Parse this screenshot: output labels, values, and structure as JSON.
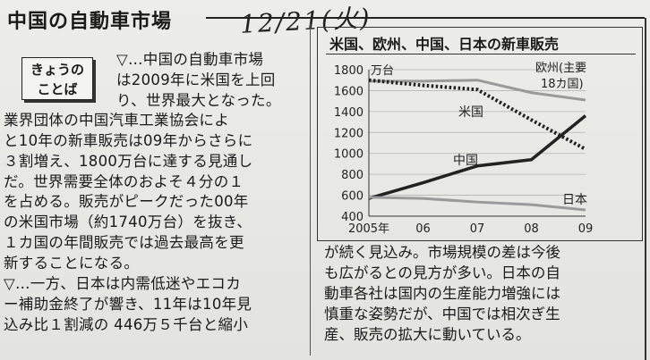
{
  "header": {
    "title": "中国の自動車市場",
    "handwritten_date": "12/21(火)"
  },
  "badge": {
    "line1": "きょうの",
    "line2": "ことば"
  },
  "article_left": {
    "lines": [
      "▽…中国の自動車市場",
      "は2009年に米国を上回",
      "り、世界最大となった。",
      "業界団体の中国汽車工業協会によ",
      "と10年の新車販売は09年からさらに",
      "３割増え、1800万台に達する見通し",
      "だ。世界需要全体のおよそ４分の１",
      "を占める。販売がピークだった00年",
      "の米国市場（約1740万台）を抜き、",
      "１カ国の年間販売では過去最高を更",
      "新することになる。",
      "▽…一方、日本は内需低迷やエコカ",
      "ー補助金終了が響き、11年は10年見",
      "込み比１割減の 446万５千台と縮小"
    ]
  },
  "article_right": {
    "lines": [
      "が続く見込み。市場規模の差は今後",
      "も広がるとの見方が多い。日本の自",
      "動車各社は国内の生産能力増強には",
      "慎重な姿勢だが、中国では相次ぎ生",
      "産、販売の拡大に動いている。"
    ]
  },
  "chart_data": {
    "type": "line",
    "title": "米国、欧州、中国、日本の新車販売",
    "ylabel": "万台",
    "ylim": [
      400,
      1800
    ],
    "yticks": [
      400,
      600,
      800,
      1000,
      1200,
      1400,
      1600,
      1800
    ],
    "x": [
      "2005年",
      "06",
      "07",
      "08",
      "09"
    ],
    "series": [
      {
        "name": "欧州(主要18カ国)",
        "label_line1": "欧州(主要",
        "label_line2": "18カ国)",
        "values": [
          1690,
          1690,
          1700,
          1580,
          1510
        ],
        "color": "#9a9a9a",
        "style": "solid"
      },
      {
        "name": "米国",
        "values": [
          1700,
          1650,
          1610,
          1320,
          1040
        ],
        "color": "#222222",
        "style": "dotted"
      },
      {
        "name": "中国",
        "values": [
          570,
          720,
          880,
          940,
          1360
        ],
        "color": "#222222",
        "style": "solid"
      },
      {
        "name": "日本",
        "values": [
          580,
          570,
          535,
          510,
          460
        ],
        "color": "#9a9a9a",
        "style": "solid"
      }
    ]
  }
}
